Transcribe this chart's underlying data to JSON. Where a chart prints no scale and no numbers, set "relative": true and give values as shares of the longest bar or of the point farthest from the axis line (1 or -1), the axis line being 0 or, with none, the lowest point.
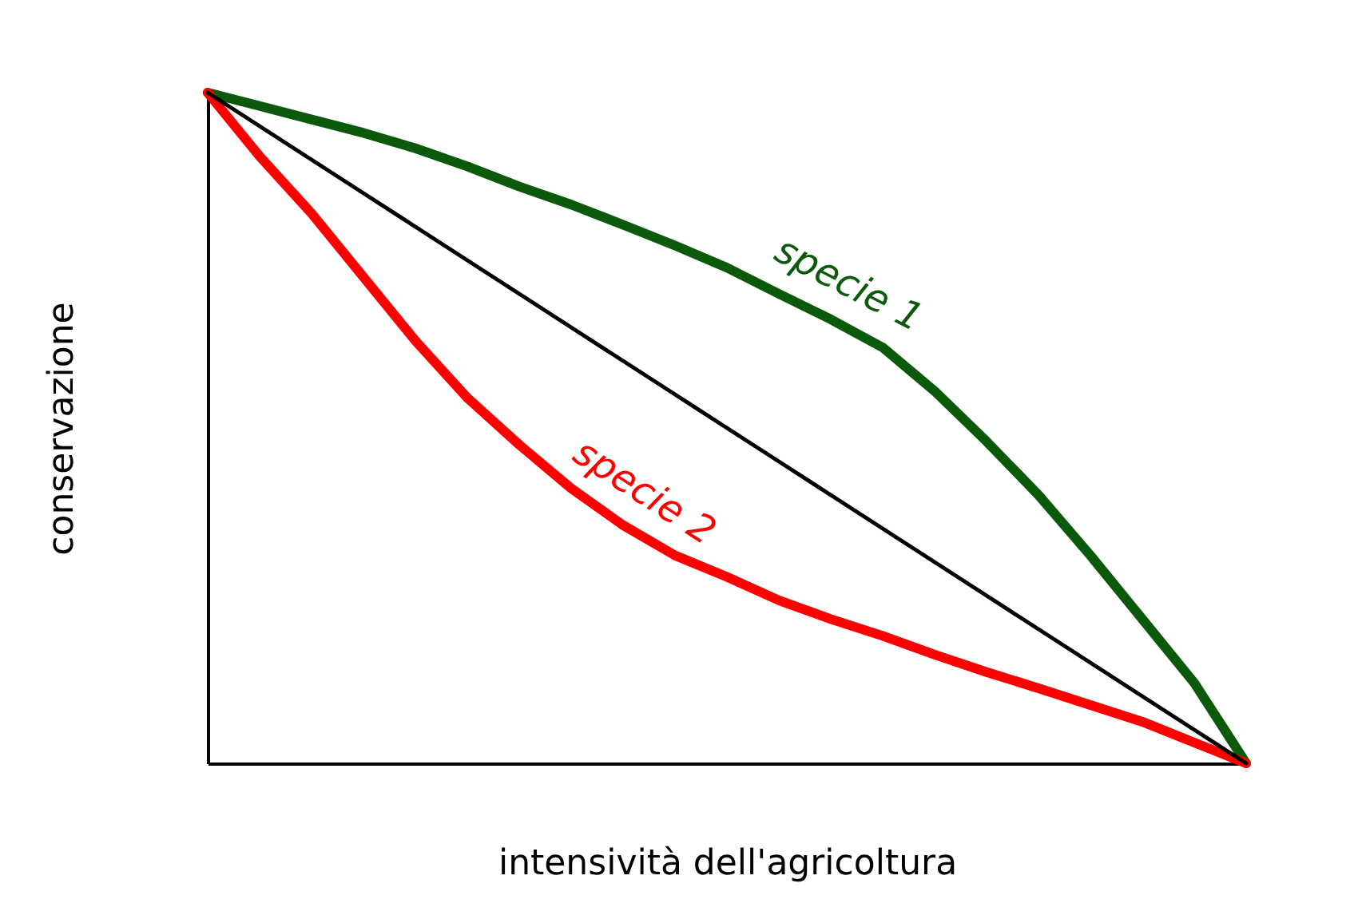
{
  "chart_data": {
    "type": "line",
    "relative": true,
    "xlabel": "intensività dell'agricoltura",
    "ylabel": "conservazione",
    "legend": false,
    "grid": false,
    "tick_labels": false,
    "marker": "none",
    "line_style": "solid",
    "categories": [
      null,
      null,
      null,
      null,
      null,
      null,
      null,
      null,
      null,
      null,
      null,
      null,
      null,
      null,
      null,
      null,
      null,
      null,
      null,
      null,
      null
    ],
    "series": [
      {
        "name": "specie 1",
        "color": "#0b5a0b",
        "values": [
          1,
          0.98,
          0.96,
          0.94,
          0.917,
          0.89,
          0.86,
          0.833,
          0.803,
          0.772,
          0.739,
          0.7,
          0.662,
          0.62,
          0.555,
          0.48,
          0.4,
          0.31,
          0.215,
          0.12,
          0
        ]
      },
      {
        "name": "specie 2",
        "color": "#ff0000",
        "values": [
          1,
          0.905,
          0.82,
          0.725,
          0.63,
          0.545,
          0.475,
          0.41,
          0.355,
          0.31,
          0.278,
          0.243,
          0.215,
          0.19,
          0.162,
          0.136,
          0.112,
          0.087,
          0.062,
          0.031,
          0
        ]
      },
      {
        "color": "#000000",
        "values": [
          1,
          0.95,
          0.9,
          0.85,
          0.8,
          0.75,
          0.7,
          0.65,
          0.6,
          0.55,
          0.5,
          0.45,
          0.4,
          0.35,
          0.3,
          0.25,
          0.2,
          0.15,
          0.1,
          0.05,
          0
        ]
      }
    ]
  }
}
